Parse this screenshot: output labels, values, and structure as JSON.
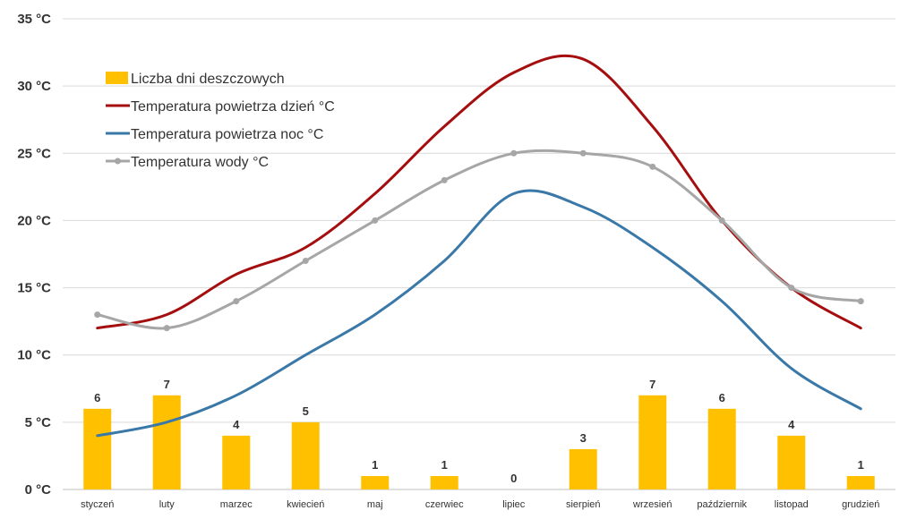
{
  "chart_data": {
    "type": "bar",
    "categories": [
      "styczeń",
      "luty",
      "marzec",
      "kwiecień",
      "maj",
      "czerwiec",
      "lipiec",
      "sierpień",
      "wrzesień",
      "październik",
      "listopad",
      "grudzień"
    ],
    "ylim": [
      0,
      35
    ],
    "y_tick_labels": [
      "0 °C",
      "5 °C",
      "10 °C",
      "15 °C",
      "20 °C",
      "25 °C",
      "30 °C",
      "35 °C"
    ],
    "grid": true,
    "legend_position": "top-left",
    "series": [
      {
        "name": "Liczba dni deszczowych",
        "type": "bar",
        "color": "#FFC000",
        "values": [
          6,
          7,
          4,
          5,
          1,
          1,
          0,
          3,
          7,
          6,
          4,
          1
        ]
      },
      {
        "name": "Temperatura powietrza dzień °C",
        "type": "line",
        "color": "#A50E0E",
        "values": [
          12,
          13,
          16,
          18,
          22,
          27,
          31,
          32,
          27,
          20,
          15,
          12
        ]
      },
      {
        "name": "Temperatura powietrza noc °C",
        "type": "line",
        "color": "#3A78A8",
        "values": [
          4,
          5,
          7,
          10,
          13,
          17,
          22,
          21,
          18,
          14,
          9,
          6
        ]
      },
      {
        "name": "Temperatura wody °C",
        "type": "line",
        "color": "#A6A6A6",
        "markers": true,
        "values": [
          13,
          12,
          14,
          17,
          20,
          23,
          25,
          25,
          24,
          20,
          15,
          14
        ]
      }
    ]
  }
}
